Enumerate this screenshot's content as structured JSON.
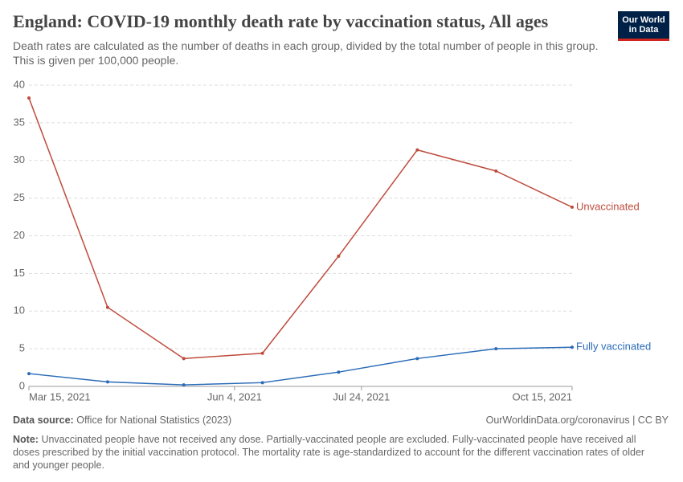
{
  "chart_data": {
    "type": "line",
    "title": "England: COVID-19 monthly death rate by vaccination status, All ages",
    "subtitle": "Death rates are calculated as the number of deaths in each group, divided by the total number of people in this group. This is given per 100,000 people.",
    "x": [
      "2021-03-15",
      "2021-04-15",
      "2021-05-15",
      "2021-06-15",
      "2021-07-15",
      "2021-08-15",
      "2021-09-15",
      "2021-10-15"
    ],
    "xlim": [
      "2021-03-15",
      "2021-10-15"
    ],
    "xticks": [
      {
        "value": "2021-03-15",
        "label": "Mar 15, 2021"
      },
      {
        "value": "2021-06-04",
        "label": "Jun 4, 2021"
      },
      {
        "value": "2021-07-24",
        "label": "Jul 24, 2021"
      },
      {
        "value": "2021-10-15",
        "label": "Oct 15, 2021"
      }
    ],
    "ylim": [
      0,
      40
    ],
    "yticks": [
      0,
      5,
      10,
      15,
      20,
      25,
      30,
      35,
      40
    ],
    "grid": true,
    "series": [
      {
        "name": "Unvaccinated",
        "color": "#be4b3c",
        "values": [
          38.3,
          10.5,
          3.7,
          4.4,
          17.3,
          31.4,
          28.6,
          23.8
        ]
      },
      {
        "name": "Fully vaccinated",
        "color": "#2a6bb8",
        "values": [
          1.7,
          0.6,
          0.2,
          0.5,
          1.9,
          3.7,
          5.0,
          5.2
        ]
      }
    ]
  },
  "logo": [
    "Our World",
    "in Data"
  ],
  "footer": {
    "source_label": "Data source:",
    "source": "Office for National Statistics (2023)",
    "url": "OurWorldinData.org/coronavirus | CC BY",
    "note_label": "Note:",
    "note": "Unvaccinated people have not received any dose. Partially-vaccinated people are excluded. Fully-vaccinated people have received all doses prescribed by the initial vaccination protocol. The mortality rate is age-standardized to account for the different vaccination rates of older and younger people."
  }
}
